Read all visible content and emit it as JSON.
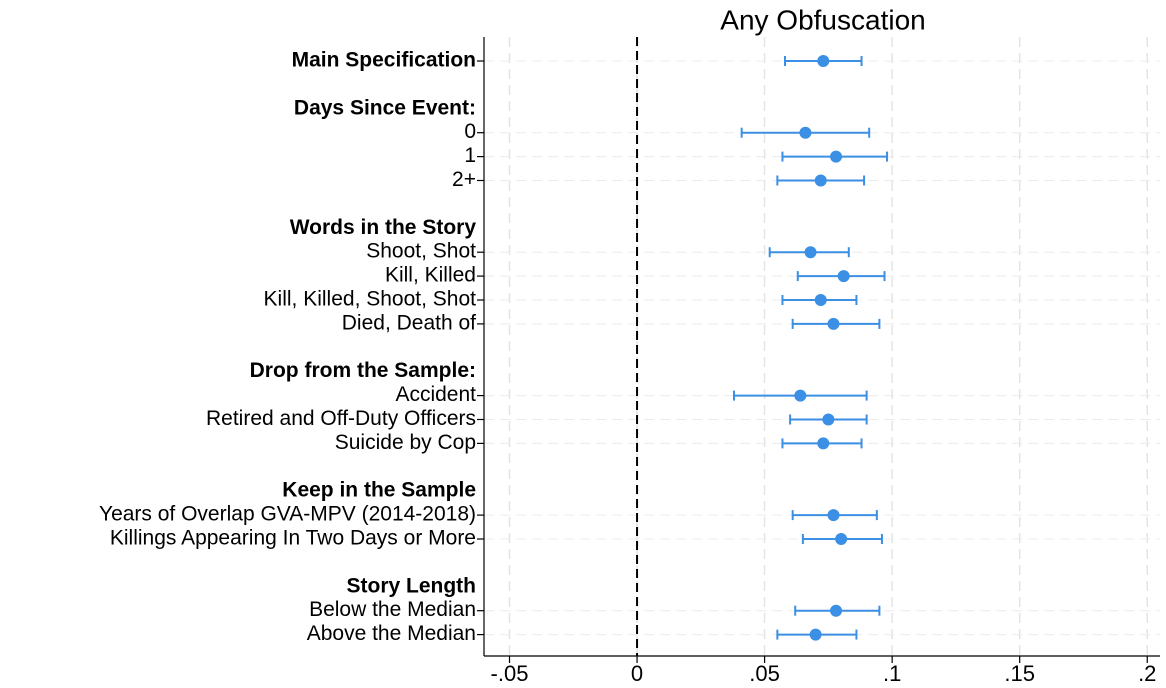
{
  "chart_data": {
    "type": "coefplot",
    "title": "Any Obfuscation",
    "color": "#3b8fe4",
    "groups": [
      {
        "title": "Main Specification",
        "values": [
          0.073
        ],
        "lower": [
          0.058
        ],
        "upper": [
          0.088
        ]
      },
      {
        "title": "Days Since Event:",
        "categories": [
          "0",
          "1",
          "2+"
        ],
        "values": [
          0.066,
          0.078,
          0.072
        ],
        "lower": [
          0.041,
          0.057,
          0.055
        ],
        "upper": [
          0.091,
          0.098,
          0.089
        ]
      },
      {
        "title": "Words in the Story",
        "categories": [
          "Shoot, Shot",
          "Kill, Killed",
          "Kill, Killed, Shoot, Shot",
          "Died, Death of"
        ],
        "values": [
          0.068,
          0.081,
          0.072,
          0.077
        ],
        "lower": [
          0.052,
          0.063,
          0.057,
          0.061
        ],
        "upper": [
          0.083,
          0.097,
          0.086,
          0.095
        ]
      },
      {
        "title": "Drop from the Sample:",
        "categories": [
          "Accident",
          "Retired and Off-Duty Officers",
          "Suicide by Cop"
        ],
        "values": [
          0.064,
          0.075,
          0.073
        ],
        "lower": [
          0.038,
          0.06,
          0.057
        ],
        "upper": [
          0.09,
          0.09,
          0.088
        ]
      },
      {
        "title": "Keep in the Sample",
        "categories": [
          "Years of Overlap GVA-MPV (2014-2018)",
          "Killings Appearing In Two Days or More"
        ],
        "values": [
          0.077,
          0.08
        ],
        "lower": [
          0.061,
          0.065
        ],
        "upper": [
          0.094,
          0.096
        ]
      },
      {
        "title": "Story Length",
        "categories": [
          "Below the Median",
          "Above the Median"
        ],
        "values": [
          0.078,
          0.07
        ],
        "lower": [
          0.062,
          0.055
        ],
        "upper": [
          0.095,
          0.086
        ]
      }
    ],
    "xlim": [
      -0.06,
      0.205
    ],
    "xticks": [
      {
        "value": -0.05,
        "label": "-.05"
      },
      0,
      {
        "value": 0.05,
        "label": ".05"
      },
      {
        "value": 0.1,
        "label": ".1"
      },
      {
        "value": 0.15,
        "label": ".15"
      },
      {
        "value": 0.2,
        "label": ".2"
      }
    ],
    "reference_line": 0,
    "grid": true
  }
}
